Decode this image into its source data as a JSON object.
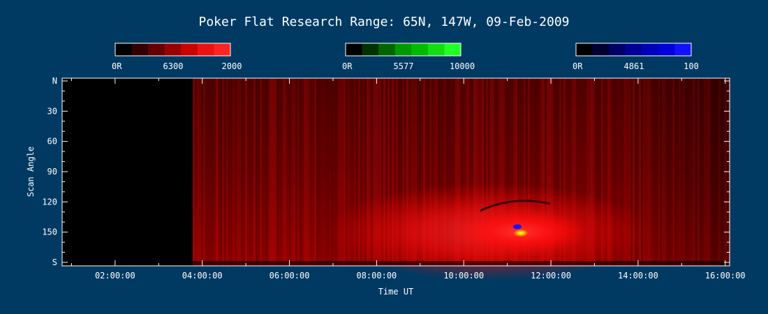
{
  "chart_data": {
    "type": "heatmap",
    "title": "Poker Flat Research Range: 65N, 147W, 09-Feb-2009",
    "xlabel": "Time UT",
    "ylabel": "Scan Angle",
    "x_ticks": [
      "02:00:00",
      "04:00:00",
      "06:00:00",
      "08:00:00",
      "10:00:00",
      "12:00:00",
      "14:00:00",
      "16:00:00"
    ],
    "y_ticks": [
      "N",
      "30",
      "60",
      "90",
      "120",
      "150",
      "S"
    ],
    "colorbars": [
      {
        "min_label": "0R",
        "wavelength": "6300",
        "max_label": "2000",
        "colors": [
          "#000000",
          "#330000",
          "#660000",
          "#990000",
          "#cc0000",
          "#ee1111",
          "#ff2222"
        ]
      },
      {
        "min_label": "0R",
        "wavelength": "5577",
        "max_label": "10000",
        "colors": [
          "#000000",
          "#003300",
          "#006600",
          "#009900",
          "#00bb00",
          "#11dd11",
          "#22ff22"
        ]
      },
      {
        "min_label": "0R",
        "wavelength": "4861",
        "max_label": "100",
        "colors": [
          "#000000",
          "#000033",
          "#000066",
          "#000099",
          "#0000bb",
          "#0000dd",
          "#1111ff"
        ]
      }
    ],
    "colors": {
      "background": "#003a63",
      "no_data": "#000000",
      "emission_6300": "#ff0000"
    },
    "grid": false
  }
}
